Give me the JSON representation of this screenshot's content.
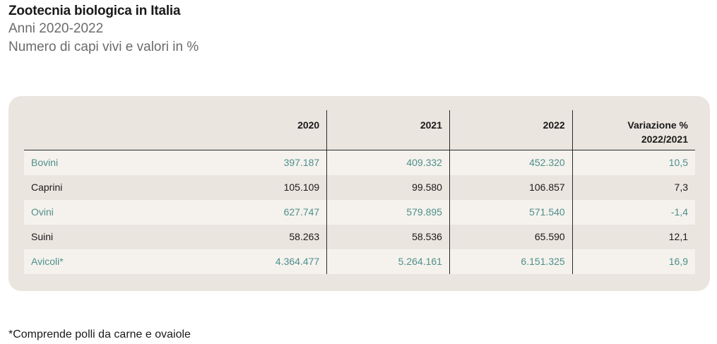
{
  "header": {
    "title": "Zootecnia biologica in Italia",
    "subtitle_years": "Anni 2020-2022",
    "subtitle_units": "Numero di capi vivi e valori in %"
  },
  "table": {
    "columns": {
      "label": "",
      "y2020": "2020",
      "y2021": "2021",
      "y2022": "2022",
      "variation_line1": "Variazione %",
      "variation_line2": "2022/2021"
    },
    "rows": [
      {
        "label": "Bovini",
        "y2020": "397.187",
        "y2021": "409.332",
        "y2022": "452.320",
        "variation": "10,5"
      },
      {
        "label": "Caprini",
        "y2020": "105.109",
        "y2021": "99.580",
        "y2022": "106.857",
        "variation": "7,3"
      },
      {
        "label": "Ovini",
        "y2020": "627.747",
        "y2021": "579.895",
        "y2022": "571.540",
        "variation": "-1,4"
      },
      {
        "label": "Suini",
        "y2020": "58.263",
        "y2021": "58.536",
        "y2022": "65.590",
        "variation": "12,1"
      },
      {
        "label": "Avicoli*",
        "y2020": "4.364.477",
        "y2021": "5.264.161",
        "y2022": "6.151.325",
        "variation": "16,9"
      }
    ],
    "highlight_color": "#4f8f8a",
    "card_color": "#ebe5df",
    "highlight_row_bg": "#f5f2ee"
  },
  "footnote": "*Comprende polli da carne e ovaiole"
}
